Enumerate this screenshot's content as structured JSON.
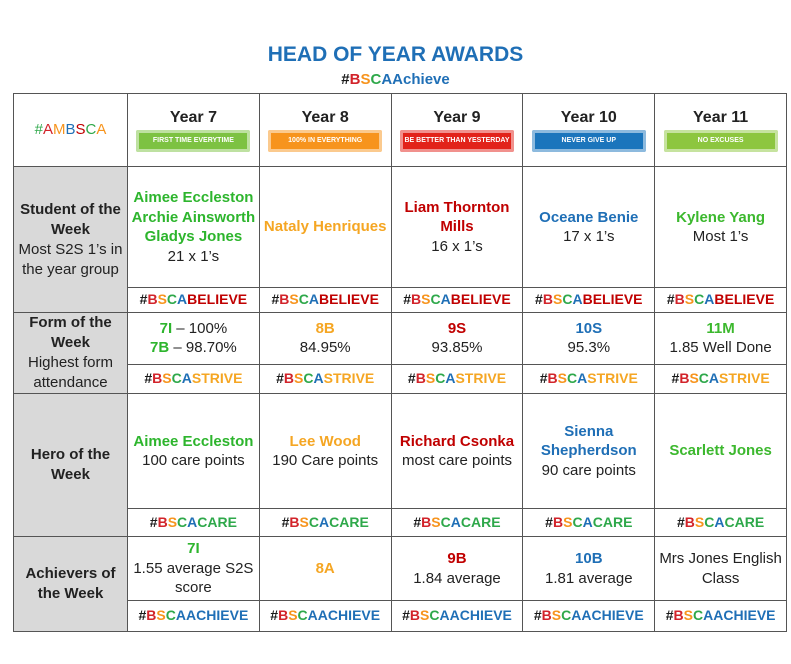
{
  "header": {
    "title": "HEAD OF YEAR AWARDS",
    "hashtag": "#BSCAAchieve"
  },
  "table": {
    "logo": "#AMBSCA",
    "years": [
      {
        "name": "Year 7",
        "motto": "FIRST TIME EVERYTIME"
      },
      {
        "name": "Year 8",
        "motto": "100% IN EVERYTHING"
      },
      {
        "name": "Year 9",
        "motto": "BE BETTER THAN YESTERDAY"
      },
      {
        "name": "Year 10",
        "motto": "NEVER GIVE UP"
      },
      {
        "name": "Year 11",
        "motto": "NO EXCUSES"
      }
    ],
    "rows": [
      {
        "label": "Student of the Week",
        "sublabel": "Most S2S 1’s in the year group",
        "hashtag": "#BSCABELIEVE",
        "cells": [
          [
            {
              "name": "Aimee Eccleston Archie Ainsworth Gladys Jones"
            },
            {
              "detail": "21 x 1’s"
            }
          ],
          [
            {
              "name": "Nataly Henriques"
            }
          ],
          [
            {
              "name": "Liam Thornton Mills"
            },
            {
              "detail": "16 x 1’s"
            }
          ],
          [
            {
              "name": "Oceane Benie"
            },
            {
              "detail": "17 x 1’s"
            }
          ],
          [
            {
              "name": "Kylene Yang"
            },
            {
              "detail": "Most 1’s"
            }
          ]
        ]
      },
      {
        "label": "Form of the Week",
        "sublabel": "Highest form attendance",
        "hashtag": "#BSCASTRIVE",
        "cells": [
          [
            {
              "name": "7I",
              "detail": "– 100%"
            },
            {
              "name": "7B",
              "detail": "– 98.70%"
            }
          ],
          [
            {
              "name": "8B"
            },
            {
              "detail": "84.95%"
            }
          ],
          [
            {
              "name": "9S"
            },
            {
              "detail": "93.85%"
            }
          ],
          [
            {
              "name": "10S"
            },
            {
              "detail": "95.3%"
            }
          ],
          [
            {
              "name": "11M"
            },
            {
              "detail": "1.85 Well Done"
            }
          ]
        ]
      },
      {
        "label": "Hero of the Week",
        "hashtag": "#BSCACARE",
        "cells": [
          [
            {
              "name": "Aimee Eccleston"
            },
            {
              "detail": "100 care points"
            }
          ],
          [
            {
              "name": "Lee Wood"
            },
            {
              "detail": "190 Care points"
            }
          ],
          [
            {
              "name": "Richard Csonka",
              "detail": "most care points"
            }
          ],
          [
            {
              "name": "Sienna Shepherdson"
            },
            {
              "detail": "90 care points"
            }
          ],
          [
            {
              "name": "Scarlett Jones"
            }
          ]
        ]
      },
      {
        "label": "Achievers of the Week",
        "hashtag": "#BSCAACHIEVE",
        "cells": [
          [
            {
              "name": "7I"
            },
            {
              "detail": "1.55 average S2S score"
            }
          ],
          [
            {
              "name": "8A"
            }
          ],
          [
            {
              "name": "9B"
            },
            {
              "detail": "1.84 average"
            }
          ],
          [
            {
              "name": "10B"
            },
            {
              "detail": "1.81 average"
            }
          ],
          [
            {
              "detail": "Mrs Jones English Class"
            }
          ]
        ]
      }
    ]
  }
}
